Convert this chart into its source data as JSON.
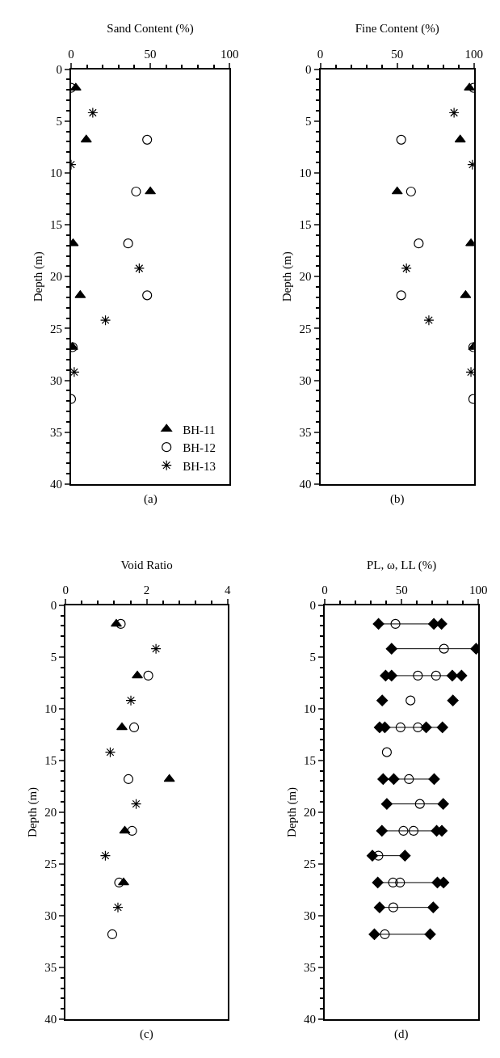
{
  "chart_data": [
    {
      "type": "scatter",
      "xlabel": "Sand Content (%)",
      "ylabel": "Depth (m)",
      "annotations": [
        "(a)"
      ],
      "xlim": [
        0,
        100
      ],
      "xticks": [
        0,
        50,
        100
      ],
      "ylim": [
        40,
        0
      ],
      "yticks": [
        0,
        5,
        10,
        15,
        20,
        25,
        30,
        35,
        40
      ],
      "grid": false,
      "legend": "bottom right",
      "series": [
        {
          "name": "BH-11",
          "color": "#000000",
          "marker": "triangle",
          "x": [
            3,
            9.6,
            50,
            1.3,
            5.8,
            1
          ],
          "values": [
            1.8,
            6.8,
            11.8,
            16.8,
            21.8,
            26.8
          ]
        },
        {
          "name": "BH-12",
          "color": "#000000",
          "marker": "circle",
          "x": [
            0,
            48,
            41,
            36,
            48,
            1,
            0
          ],
          "values": [
            1.8,
            6.8,
            11.8,
            16.8,
            21.8,
            26.8,
            31.8
          ]
        },
        {
          "name": "BH-13",
          "color": "#000000",
          "marker": "cross",
          "x": [
            13.7,
            0,
            43,
            21.7,
            2
          ],
          "values": [
            4.2,
            9.2,
            19.2,
            24.2,
            29.2
          ]
        }
      ]
    },
    {
      "type": "scatter",
      "xlabel": "Fine Content (%)",
      "ylabel": "Depth (m)",
      "annotations": [
        "(b)"
      ],
      "xlim": [
        0,
        100
      ],
      "xticks": [
        0,
        50,
        100
      ],
      "ylim": [
        40,
        0
      ],
      "yticks": [
        0,
        5,
        10,
        15,
        20,
        25,
        30,
        35,
        40
      ],
      "grid": false,
      "series": [
        {
          "color": "#000000",
          "marker": "triangle",
          "x": [
            97,
            91,
            50,
            98,
            94.5,
            99.7
          ],
          "values": [
            1.8,
            6.8,
            11.8,
            16.8,
            21.8,
            26.8
          ]
        },
        {
          "color": "#000000",
          "marker": "circle",
          "x": [
            99.7,
            52.6,
            59,
            64,
            52.6,
            99.5,
            99.5
          ],
          "values": [
            1.8,
            6.8,
            11.8,
            16.8,
            21.8,
            26.8,
            31.8
          ]
        },
        {
          "color": "#000000",
          "marker": "cross",
          "x": [
            87,
            99,
            56,
            70.6,
            98
          ],
          "values": [
            4.2,
            9.2,
            19.2,
            24.2,
            29.2
          ]
        }
      ]
    },
    {
      "type": "scatter",
      "xlabel": "Void Ratio",
      "ylabel": "Depth (m)",
      "annotations": [
        "(c)"
      ],
      "xlim": [
        0,
        4
      ],
      "xticks": [
        0,
        2,
        4
      ],
      "ylim": [
        40,
        0
      ],
      "yticks": [
        0,
        5,
        10,
        15,
        20,
        25,
        30,
        35,
        40
      ],
      "grid": false,
      "series": [
        {
          "color": "#000000",
          "marker": "triangle",
          "x": [
            1.25,
            1.77,
            1.39,
            2.56,
            1.46,
            1.43
          ],
          "values": [
            1.8,
            6.8,
            11.8,
            16.8,
            21.8,
            26.8
          ]
        },
        {
          "color": "#000000",
          "marker": "circle",
          "x": [
            1.36,
            2.04,
            1.69,
            1.55,
            1.64,
            1.32,
            1.15
          ],
          "values": [
            1.8,
            6.8,
            11.8,
            16.8,
            21.8,
            26.8,
            31.8
          ]
        },
        {
          "color": "#000000",
          "marker": "cross",
          "x": [
            2.23,
            1.61,
            1.1,
            1.74,
            0.98,
            1.29
          ],
          "values": [
            4.2,
            9.2,
            14.2,
            19.2,
            24.2,
            29.2
          ]
        }
      ]
    },
    {
      "type": "scatter",
      "xlabel": "PL, ω, LL (%)",
      "ylabel": "Depth (m)",
      "annotations": [
        "(d)"
      ],
      "xlim": [
        0,
        100
      ],
      "xticks": [
        0,
        50,
        100
      ],
      "ylim": [
        40,
        0
      ],
      "yticks": [
        0,
        5,
        10,
        15,
        20,
        25,
        30,
        35,
        40
      ],
      "grid": false,
      "series": [
        {
          "type": "line",
          "color": "#000000",
          "marker": "none",
          "x": [
            35,
            76,
            null,
            43.5,
            98.5,
            null,
            39.6,
            89,
            null,
            35.7,
            76.6,
            null,
            38,
            71.2,
            null,
            40.4,
            77.1,
            null,
            37.2,
            76.2,
            null,
            31,
            52.2,
            null,
            34.5,
            77.3,
            null,
            35.7,
            70.6,
            null,
            32.3,
            68.6
          ],
          "values": [
            1.8,
            1.8,
            null,
            4.2,
            4.2,
            null,
            6.8,
            6.8,
            null,
            11.8,
            11.8,
            null,
            16.8,
            16.8,
            null,
            19.2,
            19.2,
            null,
            21.8,
            21.8,
            null,
            24.2,
            24.2,
            null,
            26.8,
            26.8,
            null,
            29.2,
            29.2,
            null,
            31.8,
            31.8
          ]
        },
        {
          "color": "#000000",
          "marker": "diamond",
          "x": [
            35,
            43.5,
            39.6,
            43.5,
            37.4,
            35.7,
            39.1,
            38,
            44.9,
            40.4,
            37.2,
            31,
            34.5,
            35.7,
            32.3
          ],
          "values": [
            1.8,
            4.2,
            6.8,
            6.8,
            9.2,
            11.8,
            11.8,
            16.8,
            16.8,
            19.2,
            21.8,
            24.2,
            26.8,
            29.2,
            31.8
          ]
        },
        {
          "color": "#000000",
          "marker": "diamond",
          "x": [
            71,
            76,
            98.5,
            83,
            89,
            83.4,
            66,
            76.6,
            71.2,
            77.1,
            72.8,
            76.2,
            52.2,
            73.3,
            77.3,
            70.6,
            68.6
          ],
          "values": [
            1.8,
            1.8,
            4.2,
            6.8,
            6.8,
            9.2,
            11.8,
            11.8,
            16.8,
            19.2,
            21.8,
            21.8,
            24.2,
            26.8,
            26.8,
            29.2,
            31.8
          ]
        },
        {
          "color": "#000000",
          "marker": "circle",
          "x": [
            46,
            77.6,
            60.6,
            72.4,
            55.8,
            49.3,
            60.6,
            40.4,
            54.8,
            61.9,
            51.2,
            57.8,
            34.9,
            44.4,
            49,
            44.6,
            39.1
          ],
          "values": [
            1.8,
            4.2,
            6.8,
            6.8,
            9.2,
            11.8,
            11.8,
            14.2,
            16.8,
            19.2,
            21.8,
            21.8,
            24.2,
            26.8,
            26.8,
            29.2,
            31.8
          ]
        }
      ]
    }
  ]
}
